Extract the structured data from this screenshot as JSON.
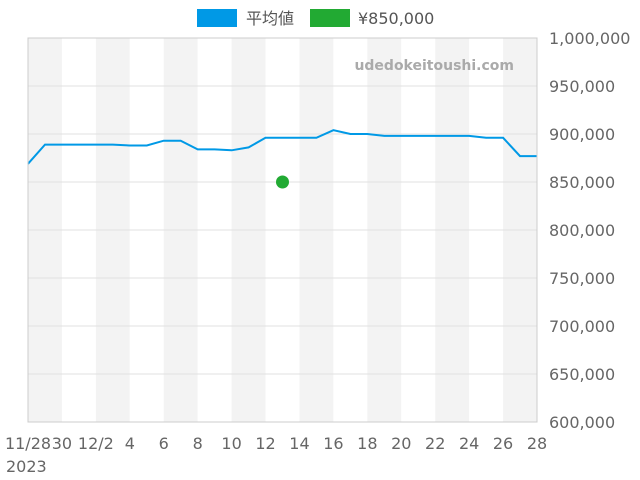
{
  "watermark": "udedokeitoushi.com",
  "legend": [
    {
      "label": "平均値",
      "color": "#0099e6",
      "icon": "legend-swatch-icon"
    },
    {
      "label": "¥850,000",
      "color": "#22aa33",
      "icon": "legend-swatch-icon"
    }
  ],
  "chart_data": {
    "type": "line",
    "title": "",
    "xlabel": "",
    "ylabel": "",
    "ylim": [
      600000,
      1000000
    ],
    "y_ticks": [
      "1,000,000",
      "950,000",
      "900,000",
      "850,000",
      "800,000",
      "750,000",
      "700,000",
      "650,000",
      "600,000"
    ],
    "x_tick_labels": [
      "11/28",
      "30",
      "12/2",
      "4",
      "6",
      "8",
      "10",
      "12",
      "14",
      "16",
      "18",
      "20",
      "22",
      "24",
      "26",
      "28"
    ],
    "x_year_label": "2023",
    "x_range": [
      "2023-11-28",
      "2023-12-28"
    ],
    "grid": true,
    "legend_position": "top",
    "series": [
      {
        "name": "平均値",
        "type": "line",
        "color": "#0099e6",
        "points": [
          {
            "x": "2023-11-28",
            "y": 869000
          },
          {
            "x": "2023-11-29",
            "y": 889000
          },
          {
            "x": "2023-11-30",
            "y": 889000
          },
          {
            "x": "2023-12-01",
            "y": 889000
          },
          {
            "x": "2023-12-02",
            "y": 889000
          },
          {
            "x": "2023-12-03",
            "y": 889000
          },
          {
            "x": "2023-12-04",
            "y": 888000
          },
          {
            "x": "2023-12-05",
            "y": 888000
          },
          {
            "x": "2023-12-06",
            "y": 893000
          },
          {
            "x": "2023-12-07",
            "y": 893000
          },
          {
            "x": "2023-12-08",
            "y": 884000
          },
          {
            "x": "2023-12-09",
            "y": 884000
          },
          {
            "x": "2023-12-10",
            "y": 883000
          },
          {
            "x": "2023-12-11",
            "y": 886000
          },
          {
            "x": "2023-12-12",
            "y": 896000
          },
          {
            "x": "2023-12-13",
            "y": 896000
          },
          {
            "x": "2023-12-14",
            "y": 896000
          },
          {
            "x": "2023-12-15",
            "y": 896000
          },
          {
            "x": "2023-12-16",
            "y": 904000
          },
          {
            "x": "2023-12-17",
            "y": 900000
          },
          {
            "x": "2023-12-18",
            "y": 900000
          },
          {
            "x": "2023-12-19",
            "y": 898000
          },
          {
            "x": "2023-12-20",
            "y": 898000
          },
          {
            "x": "2023-12-21",
            "y": 898000
          },
          {
            "x": "2023-12-22",
            "y": 898000
          },
          {
            "x": "2023-12-23",
            "y": 898000
          },
          {
            "x": "2023-12-24",
            "y": 898000
          },
          {
            "x": "2023-12-25",
            "y": 896000
          },
          {
            "x": "2023-12-26",
            "y": 896000
          },
          {
            "x": "2023-12-27",
            "y": 877000
          },
          {
            "x": "2023-12-28",
            "y": 877000
          }
        ]
      },
      {
        "name": "¥850,000",
        "type": "scatter",
        "color": "#22aa33",
        "points": [
          {
            "x": "2023-12-13",
            "y": 850000
          }
        ]
      }
    ]
  }
}
